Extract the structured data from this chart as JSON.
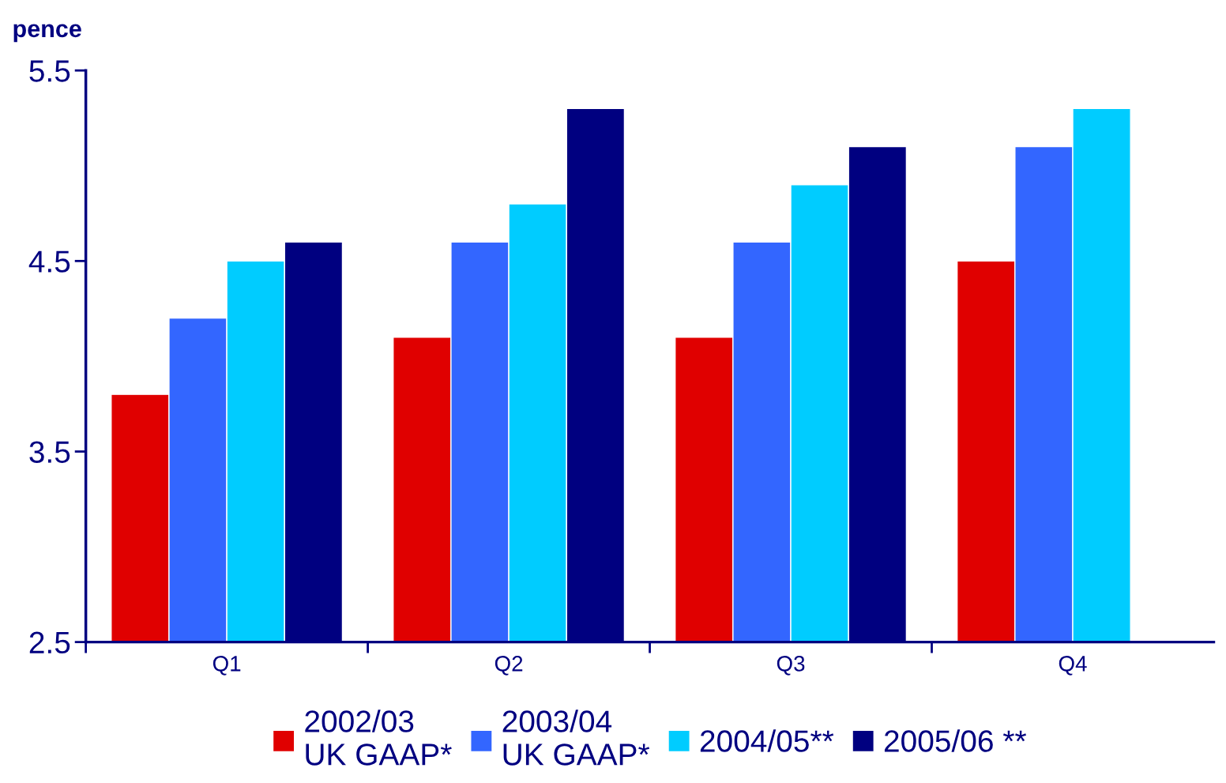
{
  "chart_data": {
    "type": "bar",
    "ylabel": "pence",
    "categories": [
      "Q1",
      "Q2",
      "Q3",
      "Q4"
    ],
    "series": [
      {
        "name": "2002/03\nUK GAAP*",
        "color": "#e00000",
        "values": [
          3.8,
          4.1,
          4.1,
          4.5
        ]
      },
      {
        "name": "2003/04\nUK GAAP*",
        "color": "#3366ff",
        "values": [
          4.2,
          4.6,
          4.6,
          5.1
        ]
      },
      {
        "name": "2004/05**",
        "color": "#00ccff",
        "values": [
          4.5,
          4.8,
          4.9,
          5.3
        ]
      },
      {
        "name": "2005/06 **",
        "color": "#000080",
        "values": [
          4.6,
          5.3,
          5.1,
          null
        ]
      }
    ],
    "ylim": [
      2.5,
      5.5
    ],
    "yticks": [
      2.5,
      3.5,
      4.5,
      5.5
    ],
    "grid": false,
    "legend": "bottom"
  }
}
